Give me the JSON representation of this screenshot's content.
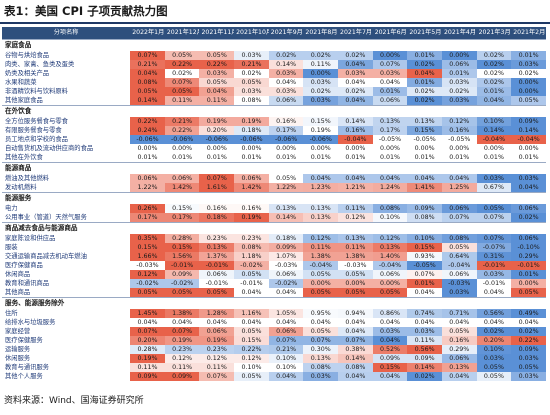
{
  "title": "表1：美国 CPI 子项贡献热力图",
  "columns": [
    "分项名称",
    "2022年1月",
    "2021年12月",
    "2021年11月",
    "2021年10月",
    "2021年9月",
    "2021年8月",
    "2021年7月",
    "2021年6月",
    "2021年5月",
    "2021年4月",
    "2021年3月",
    "2021年2月"
  ],
  "sections": [
    {
      "label": "家庭食品",
      "rows": [
        {
          "name": "谷物与烘焙食品",
          "values": [
            "0.07%",
            "0.05%",
            "0.05%",
            "0.03%",
            "0.02%",
            "0.02%",
            "0.02%",
            "0.00%",
            "0.01%",
            "0.00%",
            "0.02%",
            "0.01%"
          ]
        },
        {
          "name": "肉类、家禽、鱼类及蛋类",
          "values": [
            "0.21%",
            "0.22%",
            "0.22%",
            "0.21%",
            "0.14%",
            "0.11%",
            "0.04%",
            "0.07%",
            "0.02%",
            "0.06%",
            "0.02%",
            "0.03%"
          ]
        },
        {
          "name": "奶类及相关产品",
          "values": [
            "0.04%",
            "0.02%",
            "0.03%",
            "0.02%",
            "0.03%",
            "0.00%",
            "0.03%",
            "0.03%",
            "0.04%",
            "0.01%",
            "0.02%",
            "0.02%"
          ]
        },
        {
          "name": "水果和蔬菜",
          "values": [
            "0.08%",
            "0.07%",
            "0.05%",
            "0.05%",
            "0.04%",
            "0.03%",
            "0.04%",
            "0.04%",
            "0.01%",
            "0.03%",
            "0.02%",
            "0.00%"
          ]
        },
        {
          "name": "非酒精饮料与饮料原料",
          "values": [
            "0.05%",
            "0.05%",
            "0.04%",
            "0.03%",
            "0.03%",
            "0.02%",
            "0.02%",
            "0.01%",
            "0.02%",
            "0.02%",
            "0.01%",
            "0.00%"
          ]
        },
        {
          "name": "其他家庭食品",
          "values": [
            "0.14%",
            "0.11%",
            "0.11%",
            "0.08%",
            "0.06%",
            "0.03%",
            "0.04%",
            "0.06%",
            "0.02%",
            "0.03%",
            "0.04%",
            "0.05%"
          ]
        }
      ]
    },
    {
      "label": "在外饮食",
      "rows": [
        {
          "name": "全方位服务餐食与零食",
          "values": [
            "0.22%",
            "0.21%",
            "0.19%",
            "0.19%",
            "0.16%",
            "0.15%",
            "0.14%",
            "0.13%",
            "0.13%",
            "0.12%",
            "0.10%",
            "0.09%"
          ]
        },
        {
          "name": "有限服务餐食与零食",
          "values": [
            "0.24%",
            "0.22%",
            "0.20%",
            "0.18%",
            "0.17%",
            "0.19%",
            "0.16%",
            "0.17%",
            "0.15%",
            "0.16%",
            "0.14%",
            "0.14%"
          ]
        },
        {
          "name": "员工地点和学校的食品",
          "values": [
            "-0.06%",
            "-0.06%",
            "-0.06%",
            "-0.06%",
            "-0.06%",
            "-0.06%",
            "-0.04%",
            "-0.05%",
            "-0.05%",
            "-0.05%",
            "-0.04%",
            "-0.04%"
          ]
        },
        {
          "name": "自动售货机及流动供应商的食品",
          "values": [
            "0.00%",
            "0.00%",
            "0.00%",
            "0.00%",
            "0.00%",
            "0.00%",
            "0.00%",
            "0.00%",
            "0.00%",
            "0.00%",
            "0.00%",
            "0.00%"
          ]
        },
        {
          "name": "其他在外饮食",
          "values": [
            "0.01%",
            "0.01%",
            "0.01%",
            "0.01%",
            "0.01%",
            "0.01%",
            "0.01%",
            "0.01%",
            "0.01%",
            "0.01%",
            "0.01%",
            "0.01%"
          ]
        }
      ]
    },
    {
      "label": "能源商品",
      "rows": [
        {
          "name": "燃油及其他燃料",
          "values": [
            "0.06%",
            "0.06%",
            "0.07%",
            "0.06%",
            "0.05%",
            "0.04%",
            "0.04%",
            "0.04%",
            "0.04%",
            "0.04%",
            "0.03%",
            "0.03%"
          ]
        },
        {
          "name": "发动机燃料",
          "values": [
            "1.22%",
            "1.42%",
            "1.61%",
            "1.42%",
            "1.22%",
            "1.23%",
            "1.21%",
            "1.24%",
            "1.41%",
            "1.25%",
            "0.67%",
            "0.04%"
          ]
        }
      ]
    },
    {
      "label": "能源服务",
      "rows": [
        {
          "name": "电力",
          "values": [
            "0.26%",
            "0.15%",
            "0.16%",
            "0.16%",
            "0.13%",
            "0.13%",
            "0.11%",
            "0.08%",
            "0.09%",
            "0.06%",
            "0.05%",
            "0.06%"
          ]
        },
        {
          "name": "公用事业（管道）天然气服务",
          "values": [
            "0.17%",
            "0.17%",
            "0.18%",
            "0.19%",
            "0.14%",
            "0.13%",
            "0.12%",
            "0.10%",
            "0.08%",
            "0.07%",
            "0.07%",
            "0.02%"
          ]
        }
      ]
    },
    {
      "label": "商品减去食品与能源商品",
      "rows": [
        {
          "name": "家庭陈设和供应品",
          "values": [
            "0.35%",
            "0.28%",
            "0.23%",
            "0.23%",
            "0.18%",
            "0.12%",
            "0.13%",
            "0.12%",
            "0.10%",
            "0.08%",
            "0.07%",
            "0.06%"
          ]
        },
        {
          "name": "服装",
          "values": [
            "0.15%",
            "0.15%",
            "0.13%",
            "0.08%",
            "0.09%",
            "0.11%",
            "0.11%",
            "0.13%",
            "0.15%",
            "0.05%",
            "-0.07%",
            "-0.10%"
          ]
        },
        {
          "name": "交通运输商品减去机动车燃油",
          "values": [
            "1.66%",
            "1.56%",
            "1.37%",
            "1.18%",
            "1.07%",
            "1.38%",
            "1.38%",
            "1.40%",
            "0.93%",
            "0.64%",
            "0.31%",
            "0.29%"
          ]
        },
        {
          "name": "医疗保健商品",
          "values": [
            "-0.03%",
            "-0.01%",
            "-0.01%",
            "-0.02%",
            "-0.03%",
            "-0.04%",
            "-0.03%",
            "-0.04%",
            "-0.05%",
            "-0.04%",
            "-0.01%",
            "-0.01%"
          ]
        },
        {
          "name": "休闲商品",
          "values": [
            "0.12%",
            "0.09%",
            "0.06%",
            "0.05%",
            "0.06%",
            "0.05%",
            "0.05%",
            "0.06%",
            "0.07%",
            "0.06%",
            "0.03%",
            "0.01%"
          ]
        },
        {
          "name": "教育和通讯商品",
          "values": [
            "-0.02%",
            "-0.02%",
            "-0.01%",
            "-0.01%",
            "-0.02%",
            "0.00%",
            "0.00%",
            "0.00%",
            "0.01%",
            "-0.03%",
            "-0.01%",
            "0.00%"
          ]
        },
        {
          "name": "其他商品",
          "values": [
            "0.05%",
            "0.05%",
            "0.05%",
            "0.04%",
            "0.04%",
            "0.05%",
            "0.05%",
            "0.05%",
            "0.04%",
            "0.03%",
            "0.04%",
            "0.05%"
          ]
        }
      ]
    },
    {
      "label": "服务、能源服务除外",
      "rows": [
        {
          "name": "住所",
          "values": [
            "1.45%",
            "1.38%",
            "1.28%",
            "1.16%",
            "1.05%",
            "0.95%",
            "0.94%",
            "0.86%",
            "0.74%",
            "0.71%",
            "0.56%",
            "0.49%"
          ]
        },
        {
          "name": "给排水与垃圾服务",
          "values": [
            "0.04%",
            "0.04%",
            "0.04%",
            "0.04%",
            "0.04%",
            "0.04%",
            "0.04%",
            "0.04%",
            "0.04%",
            "0.04%",
            "0.04%",
            "0.04%"
          ]
        },
        {
          "name": "家庭经营",
          "values": [
            "0.07%",
            "0.07%",
            "0.06%",
            "0.05%",
            "0.06%",
            "0.05%",
            "0.04%",
            "0.03%",
            "0.03%",
            "0.05%",
            "0.02%",
            "0.02%"
          ]
        },
        {
          "name": "医疗保健服务",
          "values": [
            "0.20%",
            "0.19%",
            "0.19%",
            "0.15%",
            "0.07%",
            "0.07%",
            "0.07%",
            "0.04%",
            "0.11%",
            "0.16%",
            "0.20%",
            "0.22%"
          ]
        },
        {
          "name": "运输服务",
          "values": [
            "0.28%",
            "0.23%",
            "0.23%",
            "0.22%",
            "0.21%",
            "0.30%",
            "0.38%",
            "0.52%",
            "0.56%",
            "0.29%",
            "0.10%",
            "0.09%"
          ]
        },
        {
          "name": "休闲服务",
          "values": [
            "0.19%",
            "0.12%",
            "0.12%",
            "0.12%",
            "0.10%",
            "0.13%",
            "0.14%",
            "0.09%",
            "0.09%",
            "0.06%",
            "0.03%",
            "0.03%"
          ]
        },
        {
          "name": "教育与通讯服务",
          "values": [
            "0.11%",
            "0.11%",
            "0.11%",
            "0.10%",
            "0.10%",
            "0.08%",
            "0.08%",
            "0.15%",
            "0.14%",
            "0.13%",
            "0.05%",
            "0.05%"
          ]
        },
        {
          "name": "其他个人服务",
          "values": [
            "0.09%",
            "0.09%",
            "0.07%",
            "0.05%",
            "0.04%",
            "0.03%",
            "0.04%",
            "0.04%",
            "0.02%",
            "0.04%",
            "0.05%",
            "0.03%"
          ]
        }
      ]
    }
  ],
  "footer": "资料来源：Wind、国海证券研究所",
  "colors": {
    "header_bg": "#2e4f7d",
    "rule": "#1f3864",
    "row_label": "#1f3a78",
    "cold": "#3d7ccf",
    "mid": "#ffffff",
    "hot": "#e4462a"
  }
}
